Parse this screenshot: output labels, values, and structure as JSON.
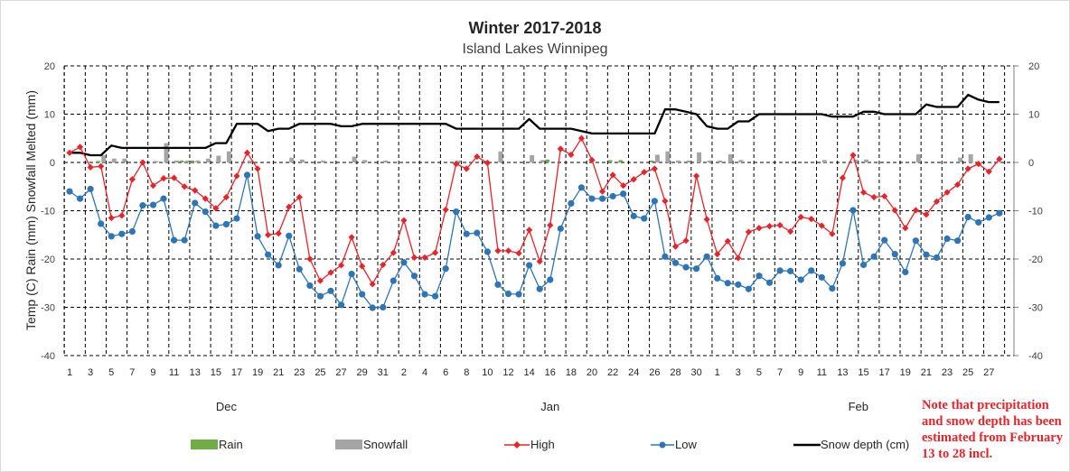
{
  "chart_data": {
    "type": "line",
    "title": "Winter 2017-2018",
    "subtitle": "Island Lakes Winnipeg",
    "ylabel": "Temp (C) Rain (mm) Snowfall Melted (mm)",
    "ylim": [
      -40,
      20
    ],
    "yticks": [
      20,
      10,
      0,
      -10,
      -20,
      -30,
      -40
    ],
    "y2ticks": [
      20,
      10,
      0,
      -10,
      -20,
      -30,
      -40
    ],
    "grid": true,
    "legend_position": "bottom",
    "months": [
      {
        "label": "Dec",
        "days": 31
      },
      {
        "label": "Jan",
        "days": 31
      },
      {
        "label": "Feb",
        "days": 28
      }
    ],
    "xtick_labels": [
      "1",
      "3",
      "5",
      "7",
      "9",
      "11",
      "13",
      "15",
      "17",
      "19",
      "21",
      "23",
      "25",
      "27",
      "29",
      "31",
      "2",
      "4",
      "6",
      "8",
      "10",
      "12",
      "14",
      "16",
      "18",
      "20",
      "22",
      "24",
      "26",
      "28",
      "30",
      "1",
      "3",
      "5",
      "7",
      "9",
      "11",
      "13",
      "15",
      "17",
      "19",
      "21",
      "23",
      "25",
      "27"
    ],
    "series": [
      {
        "name": "High",
        "type": "line",
        "color": "#e8232a",
        "marker": "diamond",
        "values": [
          2,
          3.2,
          -1,
          -0.8,
          -11.5,
          -11,
          -3.5,
          0,
          -4.8,
          -3.3,
          -3.2,
          -5,
          -5.8,
          -7.5,
          -9.5,
          -7.2,
          -2.8,
          2,
          -1.3,
          -15,
          -14.7,
          -9.2,
          -7.2,
          -20,
          -24.5,
          -22.8,
          -21.3,
          -15.5,
          -21.5,
          -25.2,
          -21.2,
          -18.7,
          -12,
          -19.7,
          -19.7,
          -18.7,
          -9.8,
          -0.3,
          -1.3,
          1.2,
          -0.1,
          -18.3,
          -18.3,
          -18.8,
          -14,
          -20.5,
          -13,
          2.8,
          1.6,
          5,
          0.5,
          -6,
          -2.6,
          -4.8,
          -3.5,
          -2,
          -1.3,
          -8,
          -17.4,
          -16.2,
          -2.8,
          -11.8,
          -19,
          -16.3,
          -19.8,
          -14.4,
          -13.6,
          -13.2,
          -13,
          -14.3,
          -11.3,
          -11.7,
          -13.1,
          -14.8,
          -3.2,
          1.5,
          -6.2,
          -7.2,
          -7,
          -9.9,
          -13.6,
          -9.9,
          -10.8,
          -8.1,
          -6.2,
          -4.6,
          -1.3,
          -0.3,
          -1.9,
          0.7
        ]
      },
      {
        "name": "Low",
        "type": "line",
        "color": "#2e75b6",
        "marker": "circle",
        "values": [
          -6,
          -7.5,
          -5.5,
          -12.7,
          -15.3,
          -14.8,
          -14.3,
          -8.9,
          -8.8,
          -7.5,
          -16.1,
          -16.1,
          -8.4,
          -10.2,
          -13.1,
          -12.8,
          -11.6,
          -2.6,
          -15.3,
          -19.1,
          -21.3,
          -15.2,
          -22.1,
          -25.5,
          -27.7,
          -26.6,
          -29.5,
          -23.1,
          -27.3,
          -30.1,
          -30,
          -24.5,
          -20.7,
          -23.5,
          -27.3,
          -27.7,
          -22,
          -10.2,
          -14.8,
          -14.6,
          -18.5,
          -25.3,
          -27.2,
          -27.3,
          -21.3,
          -26.2,
          -24.3,
          -13.7,
          -8.5,
          -5.2,
          -7.5,
          -7.5,
          -7,
          -6.5,
          -11.1,
          -11.6,
          -8,
          -19.5,
          -20.8,
          -21.7,
          -22,
          -19.5,
          -24,
          -25,
          -25.3,
          -26.2,
          -23.5,
          -24.9,
          -22.4,
          -22.5,
          -24.3,
          -22.4,
          -23.8,
          -26.1,
          -20.9,
          -9.9,
          -21.2,
          -19.5,
          -16.1,
          -19,
          -22.7,
          -16.2,
          -19.1,
          -19.7,
          -15.8,
          -16.2,
          -11.3,
          -12.4,
          -11.4,
          -10.5
        ]
      },
      {
        "name": "Snow depth (cm)",
        "type": "line",
        "color": "#000000",
        "marker": "none",
        "values": [
          2,
          2,
          1.5,
          1.5,
          3.5,
          3,
          3,
          3,
          3,
          3,
          3,
          3,
          3,
          3,
          4,
          4,
          8,
          8,
          8,
          6.5,
          7,
          7,
          8,
          8,
          8,
          8,
          7.5,
          7.5,
          8,
          8,
          8,
          8,
          8,
          8,
          8,
          8,
          8,
          7,
          7,
          7,
          7,
          7,
          7,
          7,
          9,
          7,
          7,
          7,
          7,
          6.5,
          6,
          6,
          6,
          6,
          6,
          6,
          6,
          11,
          11,
          10.5,
          10,
          7.5,
          7,
          7,
          8.5,
          8.5,
          10,
          10,
          10,
          10,
          10,
          10,
          10,
          9.5,
          9.5,
          9.5,
          10.5,
          10.5,
          10,
          10,
          10,
          10,
          12,
          11.5,
          11.5,
          11.5,
          14,
          13,
          12.5,
          12.5
        ]
      },
      {
        "name": "Rain",
        "type": "bar",
        "color": "#70ad47",
        "values": [
          0,
          0,
          0,
          0.3,
          0,
          0,
          0,
          0,
          0,
          0,
          0,
          0.4,
          0.4,
          0,
          0,
          0,
          0,
          0,
          0,
          0,
          0,
          0,
          0,
          0,
          0,
          0,
          0,
          0,
          0,
          0,
          0,
          0,
          0,
          0,
          0,
          0,
          0,
          0,
          0,
          0,
          0,
          0,
          0,
          0,
          0,
          0,
          0.6,
          0,
          0,
          0,
          0,
          0,
          0.5,
          0.5,
          0,
          0,
          0.4,
          0,
          0,
          0,
          0,
          0,
          0,
          0,
          0,
          0,
          0,
          0,
          0,
          0,
          0,
          0,
          0,
          0,
          0,
          0,
          0,
          0,
          0,
          0,
          0,
          0,
          0,
          0,
          0,
          0,
          0,
          0,
          0,
          0
        ]
      },
      {
        "name": "Snowfall",
        "type": "bar",
        "color": "#a5a5a5",
        "values": [
          0,
          0,
          0,
          1.5,
          0.8,
          0.8,
          0,
          0,
          0.3,
          4,
          0.4,
          0.4,
          0.4,
          0.8,
          1.4,
          2.3,
          0,
          0.4,
          0,
          0,
          0,
          1,
          0.6,
          0,
          0.4,
          0,
          0,
          1.2,
          0.5,
          0,
          0.4,
          0,
          0,
          0,
          0,
          0,
          0,
          0.4,
          0,
          0,
          0,
          2.3,
          0,
          0,
          1.5,
          0.5,
          0,
          0,
          0,
          0,
          0,
          0,
          0,
          0,
          0,
          0,
          1.6,
          2.3,
          0.4,
          0.4,
          2.1,
          0.4,
          0.4,
          1.7,
          0.5,
          0,
          0,
          0,
          0,
          0,
          0,
          0,
          0.5,
          0,
          0,
          0.6,
          0.6,
          0,
          0,
          0,
          0,
          1.7,
          0,
          0,
          0,
          1,
          1.7,
          0,
          0,
          0
        ]
      }
    ]
  },
  "legend": [
    {
      "label": "Rain",
      "symbol": "rect",
      "color": "#70ad47"
    },
    {
      "label": "Snowfall",
      "symbol": "rect",
      "color": "#a5a5a5"
    },
    {
      "label": "High",
      "symbol": "line-diamond",
      "color": "#e8232a"
    },
    {
      "label": "Low",
      "symbol": "line-circle",
      "color": "#2e75b6"
    },
    {
      "label": "Snow depth (cm)",
      "symbol": "line",
      "color": "#000000"
    }
  ],
  "note": "Note that precipitation and snow depth has been estimated from February 13 to 28 incl."
}
